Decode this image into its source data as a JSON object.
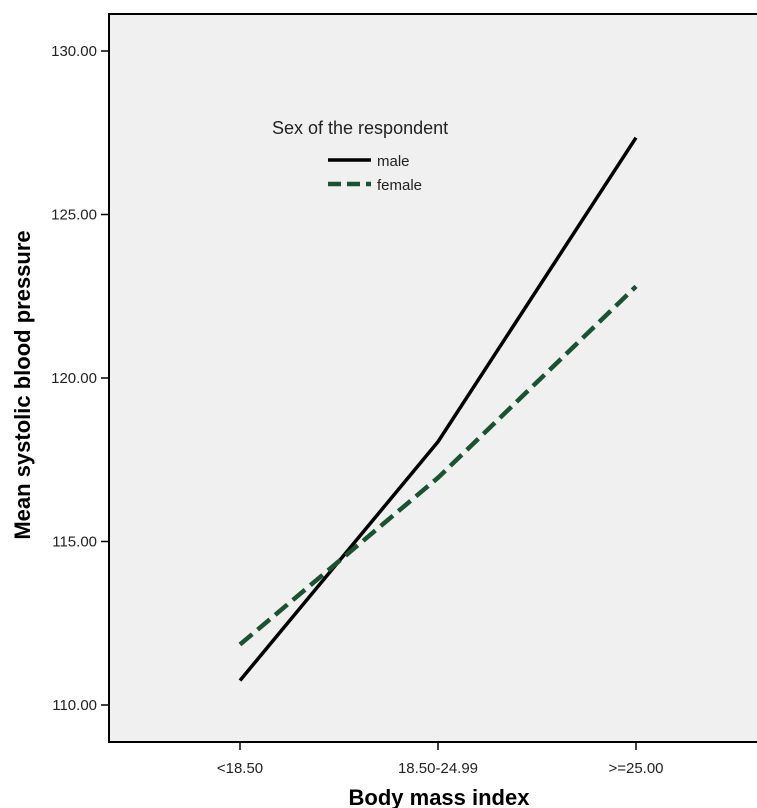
{
  "chart_data": {
    "type": "line",
    "categories": [
      "<18.50",
      "18.50-24.99",
      ">=25.00"
    ],
    "series": [
      {
        "name": "male",
        "values": [
          110.75,
          118.05,
          127.35
        ],
        "color": "#000000",
        "dash": "solid"
      },
      {
        "name": "female",
        "values": [
          111.85,
          116.95,
          122.8
        ],
        "color": "#1a5232",
        "dash": "dashed"
      }
    ],
    "title": "",
    "xlabel": "Body mass index",
    "ylabel": "Mean systolic blood pressure",
    "ylim": [
      109,
      131
    ],
    "yticks": [
      "110.00",
      "115.00",
      "120.00",
      "125.00",
      "130.00"
    ],
    "ytick_values": [
      110,
      115,
      120,
      125,
      130
    ],
    "legend": {
      "title": "Sex of the respondent",
      "position": "top-left"
    },
    "grid": false
  }
}
